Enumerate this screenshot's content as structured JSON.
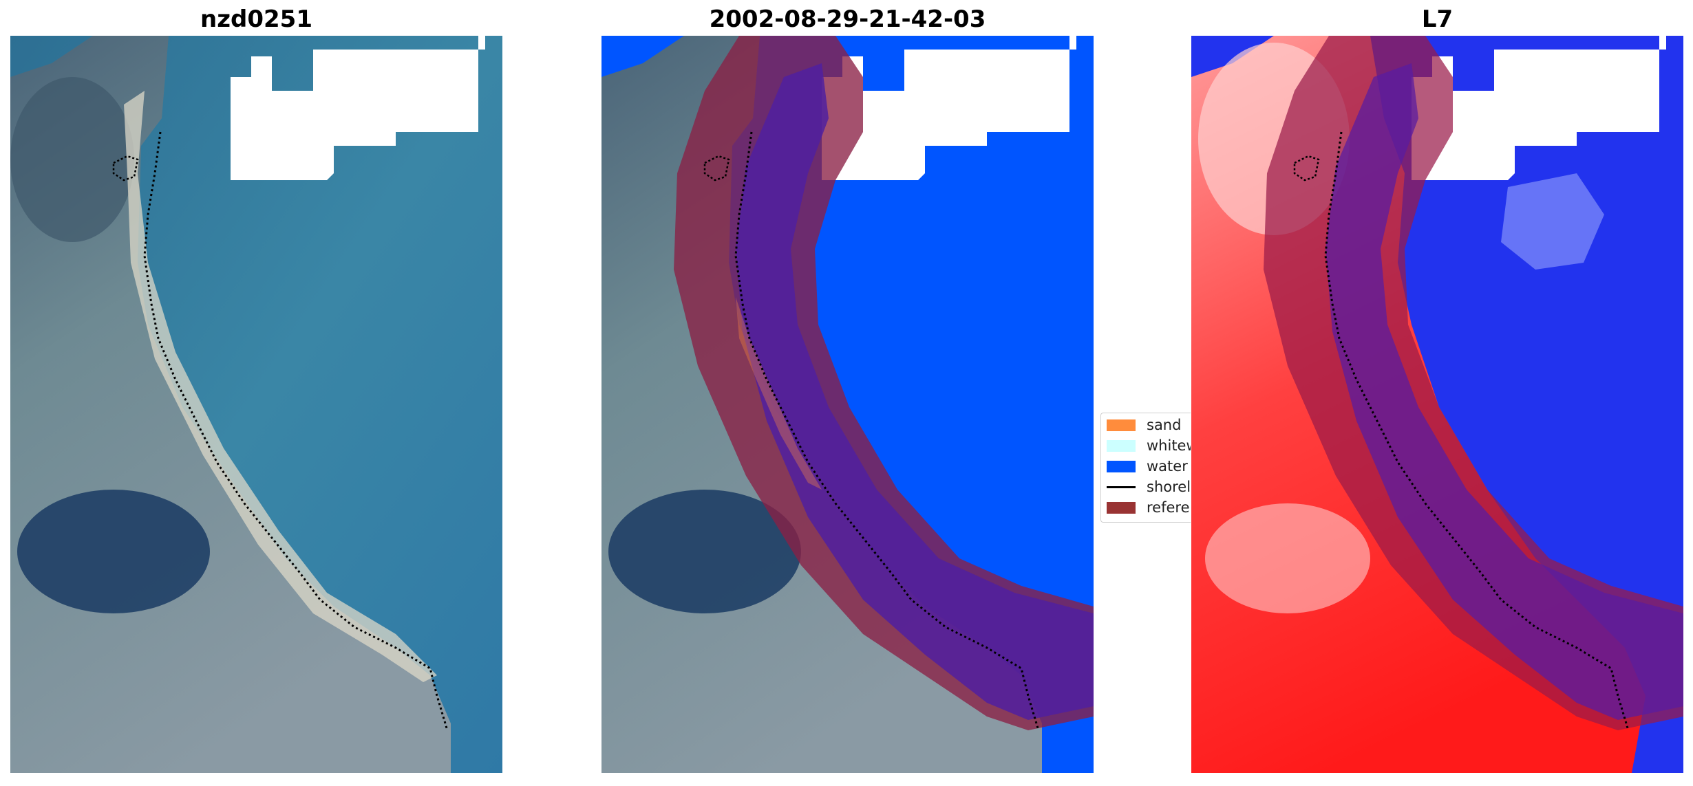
{
  "panels": [
    {
      "title": "nzd0251",
      "view": "rgb"
    },
    {
      "title": "2002-08-29-21-42-03",
      "view": "classification"
    },
    {
      "title": "L7",
      "view": "index"
    }
  ],
  "legend": {
    "items": [
      {
        "label": "sand",
        "color": "#ff8c3c",
        "kind": "patch"
      },
      {
        "label": "whitewater",
        "color": "#ccffff",
        "kind": "patch"
      },
      {
        "label": "water",
        "color": "#0055ff",
        "kind": "patch"
      },
      {
        "label": "shoreline",
        "color": "#000000",
        "kind": "line"
      },
      {
        "label": "reference",
        "color": "#993333",
        "kind": "patch"
      }
    ]
  },
  "colors": {
    "land": "#6f8a95",
    "sea": "#2f77a0",
    "water_class": "#0055ff",
    "buffer": "#8a2045",
    "buffer_inner": "#55249a",
    "index_land": "#ff2222",
    "index_water": "#2233ee"
  }
}
